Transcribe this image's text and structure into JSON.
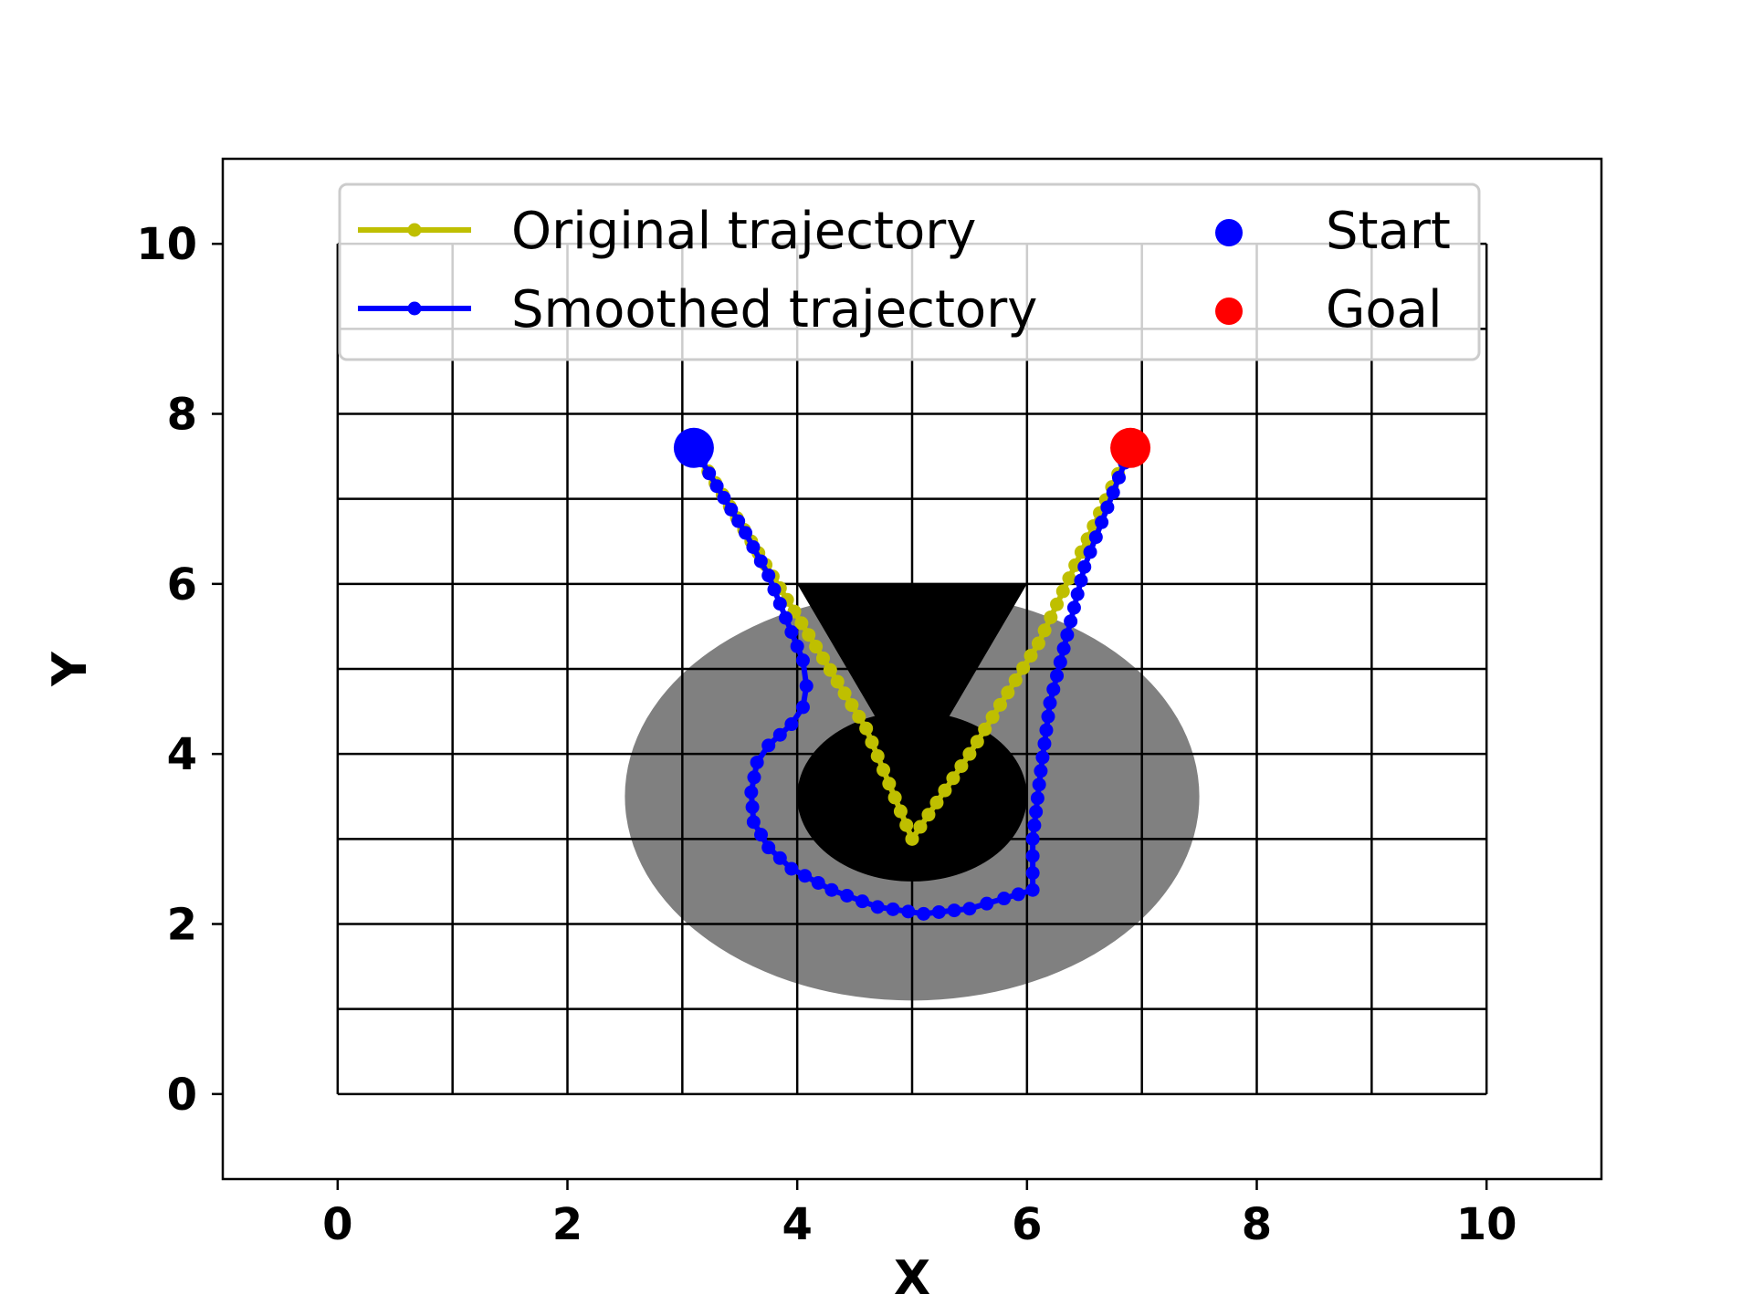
{
  "chart_data": {
    "type": "line",
    "title": "",
    "xlabel": "X",
    "ylabel": "Y",
    "xlim": [
      -1,
      11
    ],
    "ylim": [
      -1,
      11
    ],
    "xticks": [
      0,
      2,
      4,
      6,
      8,
      10
    ],
    "yticks": [
      0,
      2,
      4,
      6,
      8,
      10
    ],
    "grid": {
      "x_lines": [
        0,
        1,
        2,
        3,
        4,
        5,
        6,
        7,
        8,
        9,
        10
      ],
      "y_lines": [
        0,
        1,
        2,
        3,
        4,
        5,
        6,
        7,
        8,
        9,
        10
      ]
    },
    "legend": {
      "placement": "top",
      "entries": [
        {
          "label": "Original trajectory",
          "color": "#bfbf00",
          "kind": "line"
        },
        {
          "label": "Smoothed trajectory",
          "color": "#0000ff",
          "kind": "line"
        },
        {
          "label": "Start",
          "color": "#0000ff",
          "kind": "marker"
        },
        {
          "label": "Goal",
          "color": "#ff0000",
          "kind": "marker"
        }
      ]
    },
    "obstacles": [
      {
        "shape": "ellipse",
        "center": [
          5,
          3.5
        ],
        "radius": [
          2.5,
          2.4
        ],
        "color": "#808080"
      },
      {
        "shape": "ellipse",
        "center": [
          5,
          3.5
        ],
        "radius": [
          1.0,
          1.0
        ],
        "color": "#000000"
      },
      {
        "shape": "triangle",
        "points": [
          [
            4,
            6
          ],
          [
            6,
            6
          ],
          [
            5,
            3.7
          ]
        ],
        "color": "#000000"
      }
    ],
    "series": [
      {
        "name": "Original trajectory",
        "color": "#bfbf00",
        "points": [
          [
            3.1,
            7.6
          ],
          [
            3.6,
            6.5
          ],
          [
            4.1,
            5.4
          ],
          [
            4.6,
            4.3
          ],
          [
            5.0,
            3.0
          ],
          [
            5.5,
            4.0
          ],
          [
            6.1,
            5.3
          ],
          [
            6.9,
            7.6
          ]
        ]
      },
      {
        "name": "Smoothed trajectory",
        "color": "#0000ff",
        "points": [
          [
            3.1,
            7.6
          ],
          [
            3.3,
            7.15
          ],
          [
            3.55,
            6.6
          ],
          [
            3.75,
            6.1
          ],
          [
            3.9,
            5.6
          ],
          [
            4.05,
            5.1
          ],
          [
            4.08,
            4.8
          ],
          [
            4.05,
            4.55
          ],
          [
            3.95,
            4.35
          ],
          [
            3.75,
            4.1
          ],
          [
            3.65,
            3.9
          ],
          [
            3.6,
            3.55
          ],
          [
            3.62,
            3.2
          ],
          [
            3.75,
            2.9
          ],
          [
            3.95,
            2.65
          ],
          [
            4.3,
            2.4
          ],
          [
            4.7,
            2.2
          ],
          [
            5.1,
            2.12
          ],
          [
            5.5,
            2.18
          ],
          [
            5.8,
            2.3
          ],
          [
            6.05,
            2.4
          ],
          [
            6.05,
            3.0
          ],
          [
            6.12,
            3.8
          ],
          [
            6.2,
            4.6
          ],
          [
            6.35,
            5.4
          ],
          [
            6.5,
            6.2
          ],
          [
            6.7,
            6.9
          ],
          [
            6.9,
            7.6
          ]
        ]
      }
    ],
    "start": {
      "x": 3.1,
      "y": 7.6,
      "color": "#0000ff"
    },
    "goal": {
      "x": 6.9,
      "y": 7.6,
      "color": "#ff0000"
    }
  }
}
